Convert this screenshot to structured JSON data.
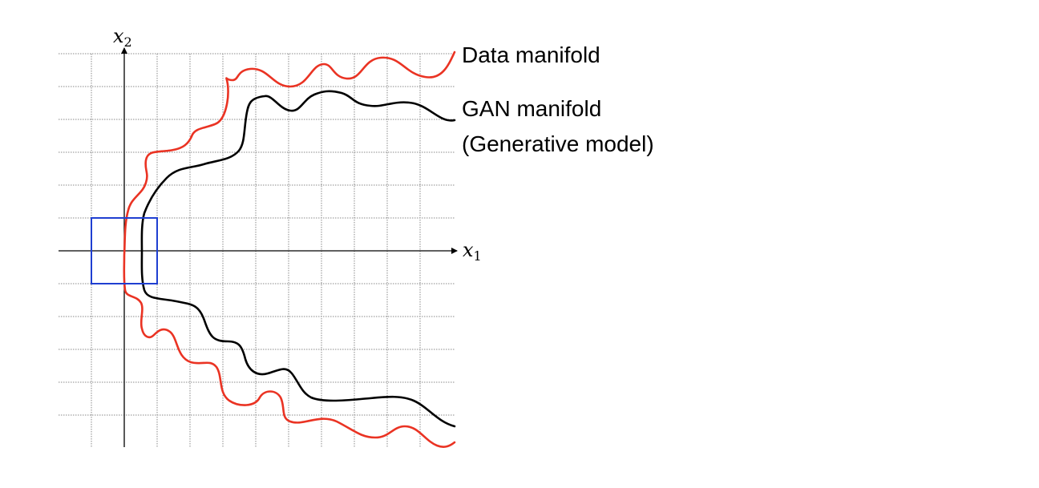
{
  "axes": {
    "x_label": {
      "base": "x",
      "sub": "1"
    },
    "y_label": {
      "base": "x",
      "sub": "2"
    }
  },
  "labels": {
    "data_manifold": "Data manifold",
    "gan_manifold_line1": "GAN manifold",
    "gan_manifold_line2": "(Generative model)"
  },
  "colors": {
    "data_manifold": "#ea3323",
    "gan_manifold": "#000000",
    "focus_box": "#1f3fd1",
    "grid": "#8a8a8a",
    "axis": "#000000"
  }
}
